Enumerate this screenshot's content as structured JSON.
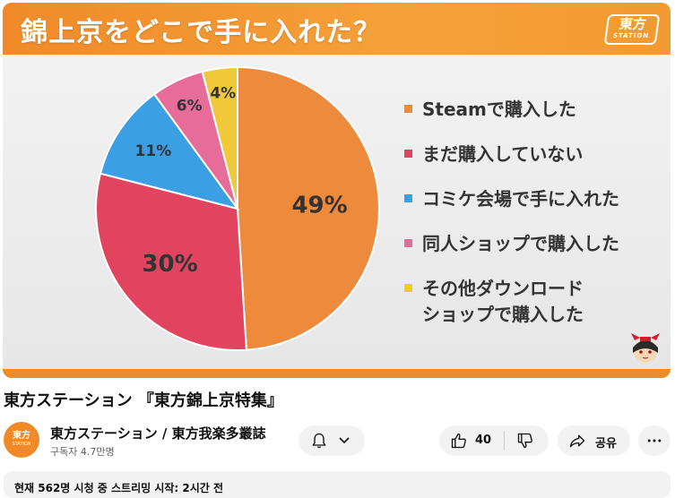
{
  "video": {
    "banner_title": "錦上京をどこで手に入れた？",
    "logo": {
      "line1": "東方",
      "line2": "STATION"
    },
    "colors": {
      "banner": "#f08a28"
    },
    "chart_data": {
      "type": "pie",
      "slices": [
        {
          "label": "Steamで購入した",
          "value": 49,
          "display": "49%",
          "color": "#ee8a3c"
        },
        {
          "label": "まだ購入していない",
          "value": 30,
          "display": "30%",
          "color": "#e2445f"
        },
        {
          "label": "コミケ会場で手に入れた",
          "value": 11,
          "display": "11%",
          "color": "#3b9fe3"
        },
        {
          "label": "同人ショップで購入した",
          "value": 6,
          "display": "6%",
          "color": "#e86c9a"
        },
        {
          "label": "その他ダウンロードショップで購入した",
          "value": 4,
          "display": "4%",
          "color": "#f0c93a"
        }
      ],
      "legend": [
        {
          "lines": [
            "Steamで購入した"
          ],
          "color": "#ee8a3c"
        },
        {
          "lines": [
            "まだ購入していない"
          ],
          "color": "#e2445f"
        },
        {
          "lines": [
            "コミケ会場で手に入れた"
          ],
          "color": "#3b9fe3"
        },
        {
          "lines": [
            "同人ショップで購入した"
          ],
          "color": "#e86c9a"
        },
        {
          "lines": [
            "その他ダウンロード",
            "ショップで購入した"
          ],
          "color": "#f0c93a"
        }
      ],
      "legend_position": "right"
    }
  },
  "title": "東方ステーション 『東方錦上京特集』",
  "channel": {
    "name": "東方ステーション / 東方我楽多叢誌",
    "subscribers": "구독자 4.7만명",
    "avatar": {
      "line1": "東方",
      "line2": "STATION"
    }
  },
  "actions": {
    "bell_icon": "bell-icon",
    "chevron_icon": "chevron-down-icon",
    "like_count": "40",
    "like_icon": "thumbs-up-icon",
    "dislike_icon": "thumbs-down-icon",
    "share_label": "공유",
    "share_icon": "share-icon",
    "more_icon": "more-horizontal-icon"
  },
  "description": {
    "status": "현재 562명 시청 중  스트리밍 시작: 2시간 전"
  }
}
